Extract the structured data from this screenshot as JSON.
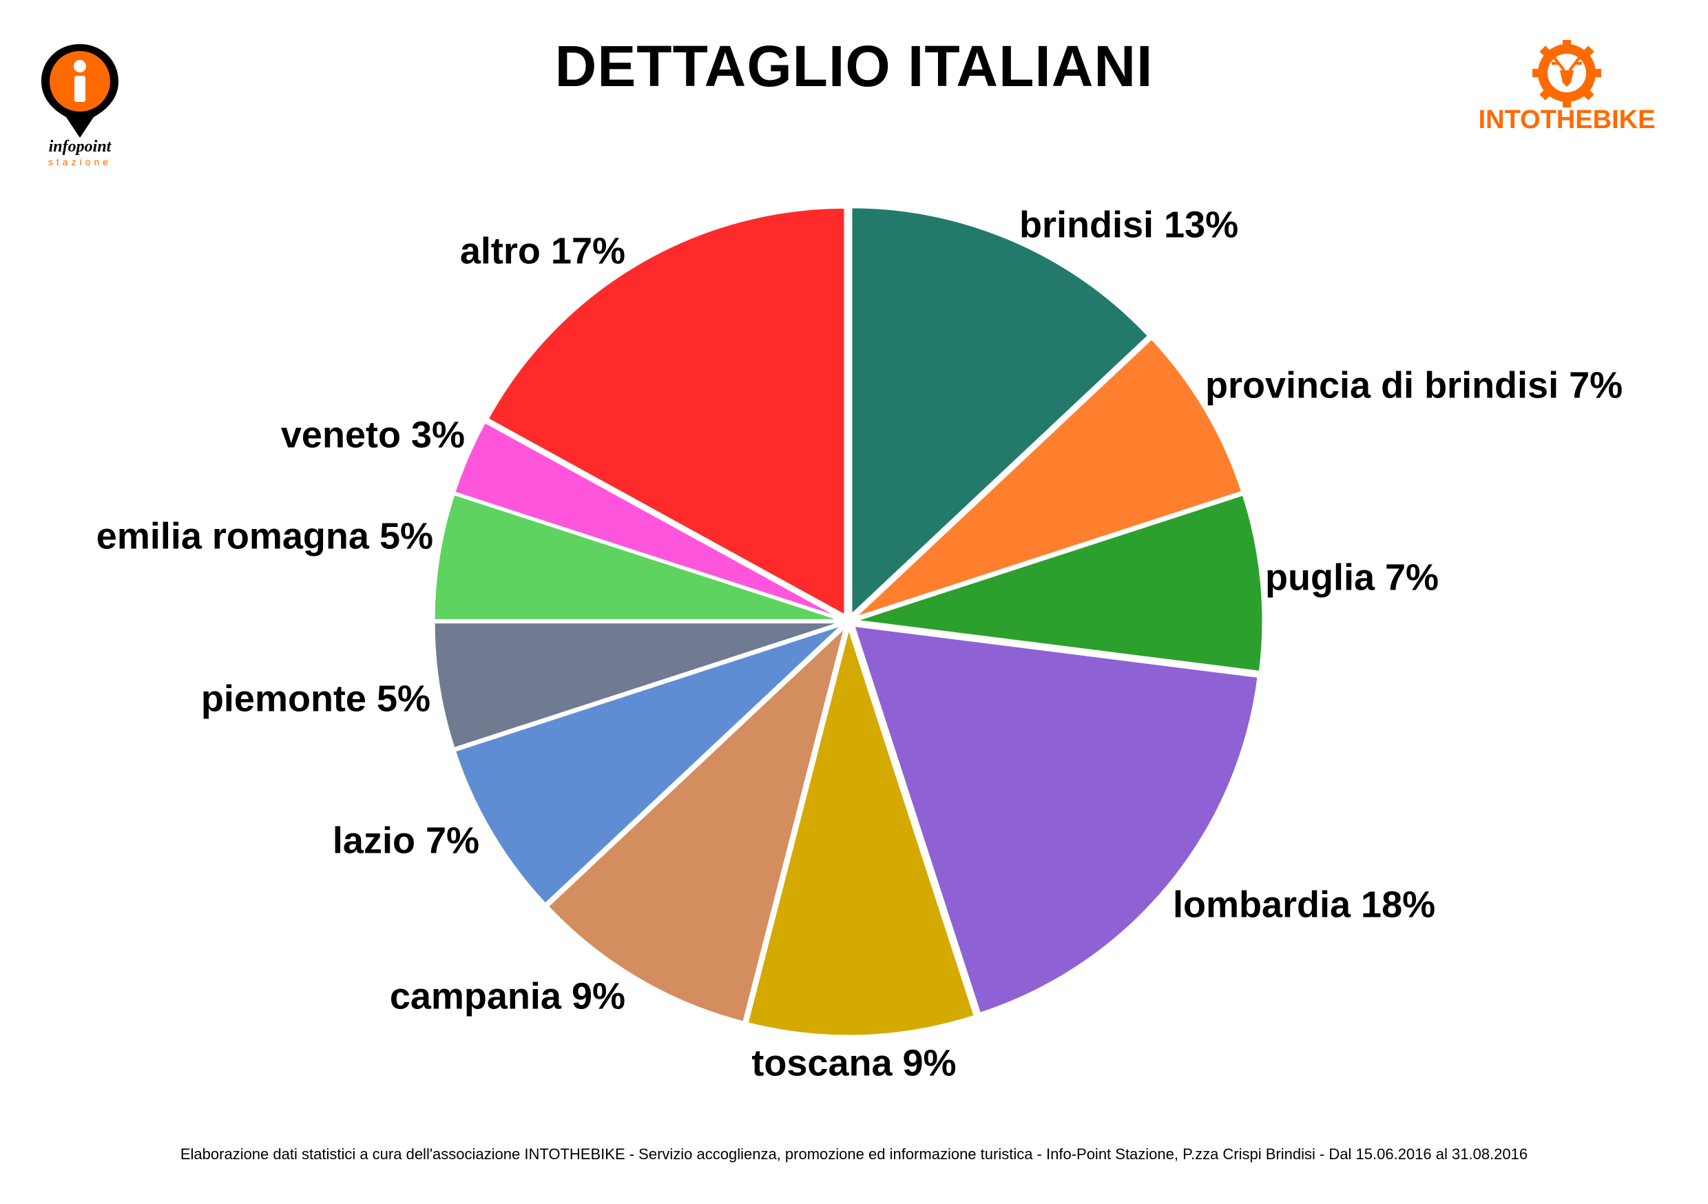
{
  "title": "DETTAGLIO ITALIANI",
  "footer": "Elaborazione dati statistici a cura dell'associazione INTOTHEBIKE - Servizio accoglienza, promozione ed informazione turistica - Info-Point Stazione, P.zza Crispi Brindisi - Dal 15.06.2016 al 31.08.2016",
  "logos": {
    "left": {
      "icon": "info-pin-icon",
      "line1": "infopoint",
      "line2": "stazione",
      "accent": "#ff6a00"
    },
    "right": {
      "icon": "stag-gear-icon",
      "text": "INTOTHEBIKE",
      "accent": "#ff6a00"
    }
  },
  "chart_data": {
    "type": "pie",
    "title": "DETTAGLIO ITALIANI",
    "start": "12 o'clock, clockwise",
    "exploded": true,
    "slices": [
      {
        "label": "brindisi 13%",
        "value": 13,
        "color": "#237a6b"
      },
      {
        "label": "provincia di brindisi 7%",
        "value": 7,
        "color": "#ff7f2e"
      },
      {
        "label": "puglia 7%",
        "value": 7,
        "color": "#2ca02c"
      },
      {
        "label": "lombardia 18%",
        "value": 18,
        "color": "#8e62d4"
      },
      {
        "label": "toscana 9%",
        "value": 9,
        "color": "#d4aa00"
      },
      {
        "label": "campania 9%",
        "value": 9,
        "color": "#d38d5f"
      },
      {
        "label": "lazio 7%",
        "value": 7,
        "color": "#5f8dd3"
      },
      {
        "label": "piemonte 5%",
        "value": 5,
        "color": "#707b91"
      },
      {
        "label": "emilia romagna 5%",
        "value": 5,
        "color": "#5fd35f"
      },
      {
        "label": "veneto 3%",
        "value": 3,
        "color": "#ff55dd"
      },
      {
        "label": "altro 17%",
        "value": 17,
        "color": "#ff2a2a"
      }
    ]
  }
}
